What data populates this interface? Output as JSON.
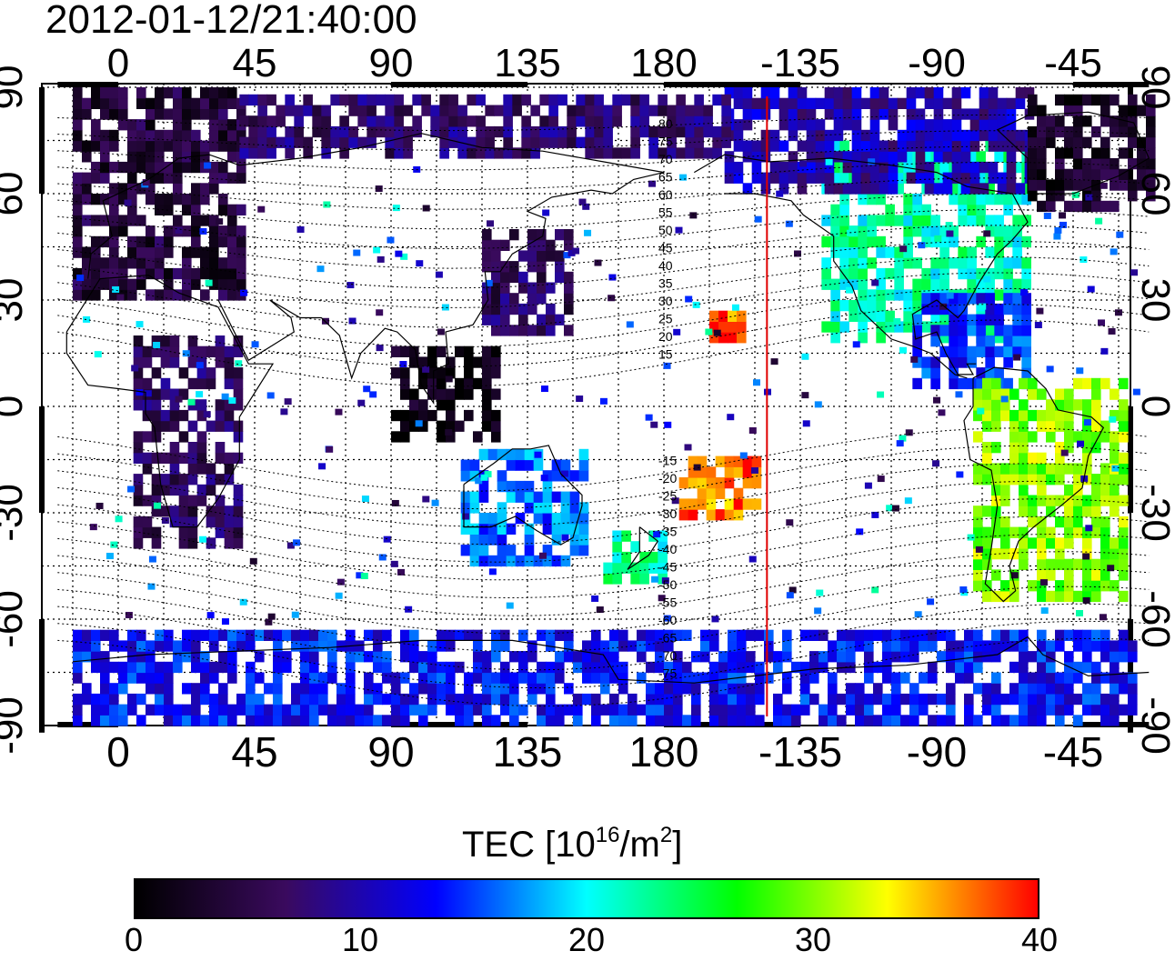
{
  "title": "2012-01-12/21:40:00",
  "chart_data": {
    "type": "heatmap",
    "map_projection": "equirectangular",
    "top_lon_labels": [
      "0",
      "45",
      "90",
      "135",
      "180",
      "-135",
      "-90",
      "-45"
    ],
    "bottom_lon_labels": [
      "0",
      "45",
      "90",
      "135",
      "180",
      "-135",
      "-90",
      "-45"
    ],
    "lat_labels": [
      "90",
      "60",
      "30",
      "0",
      "-30",
      "-60",
      "-90"
    ],
    "lon_range": [
      -20,
      340
    ],
    "lat_range": [
      -92,
      92
    ],
    "magnetic_latitude_labels": [
      "80",
      "75",
      "70",
      "65",
      "60",
      "55",
      "50",
      "45",
      "40",
      "35",
      "30",
      "25",
      "20",
      "15",
      "-15",
      "-20",
      "-25",
      "-30",
      "-35",
      "-40",
      "-45",
      "-50",
      "-55",
      "-60",
      "-65",
      "-70",
      "-75"
    ],
    "terminator_lon": 214,
    "colorbar": {
      "title_prefix": "TEC  [10",
      "title_exp1": "16",
      "title_mid": "/m",
      "title_exp2": "2",
      "title_suffix": "]",
      "min": 0,
      "max": 40,
      "ticks": [
        "0",
        "10",
        "20",
        "30",
        "40"
      ],
      "stops": [
        "#000000",
        "#3a0a5e",
        "#0000ff",
        "#00ffff",
        "#00ff00",
        "#ffff00",
        "#ff0000"
      ]
    },
    "tec_regions": [
      {
        "name": "north-america",
        "lon_min": 232,
        "lon_max": 300,
        "lat_min": 18,
        "lat_max": 74,
        "value": 22
      },
      {
        "name": "arctic-america",
        "lon_min": 200,
        "lon_max": 300,
        "lat_min": 60,
        "lat_max": 88,
        "value": 10
      },
      {
        "name": "greenland-arctic",
        "lon_min": 300,
        "lon_max": 340,
        "lat_min": 55,
        "lat_max": 88,
        "value": 3
      },
      {
        "name": "caribbean",
        "lon_min": 262,
        "lon_max": 300,
        "lat_min": 5,
        "lat_max": 30,
        "value": 14
      },
      {
        "name": "south-america",
        "lon_min": 282,
        "lon_max": 332,
        "lat_min": -55,
        "lat_max": 8,
        "value": 30
      },
      {
        "name": "europe-north-asia",
        "lon_min": -15,
        "lon_max": 40,
        "lat_min": 30,
        "lat_max": 88,
        "value": 4
      },
      {
        "name": "arctic-siberia",
        "lon_min": 40,
        "lon_max": 200,
        "lat_min": 70,
        "lat_max": 88,
        "value": 7
      },
      {
        "name": "east-asia",
        "lon_min": 120,
        "lon_max": 150,
        "lat_min": 20,
        "lat_max": 50,
        "value": 6
      },
      {
        "name": "southeast-asia",
        "lon_min": 90,
        "lon_max": 125,
        "lat_min": -10,
        "lat_max": 15,
        "value": 1
      },
      {
        "name": "africa",
        "lon_min": 5,
        "lon_max": 40,
        "lat_min": -40,
        "lat_max": 20,
        "value": 6
      },
      {
        "name": "australia",
        "lon_min": 113,
        "lon_max": 155,
        "lat_min": -45,
        "lat_max": -12,
        "value": 16
      },
      {
        "name": "new-zealand",
        "lon_min": 160,
        "lon_max": 180,
        "lat_min": -50,
        "lat_max": -35,
        "value": 22
      },
      {
        "name": "south-pacific-islands",
        "lon_min": 185,
        "lon_max": 212,
        "lat_min": -32,
        "lat_max": -15,
        "value": 37
      },
      {
        "name": "hawaii",
        "lon_min": 195,
        "lon_max": 205,
        "lat_min": 18,
        "lat_max": 25,
        "value": 38
      },
      {
        "name": "antarctica",
        "lon_min": -15,
        "lon_max": 335,
        "lat_min": -90,
        "lat_max": -65,
        "value": 13
      }
    ]
  }
}
